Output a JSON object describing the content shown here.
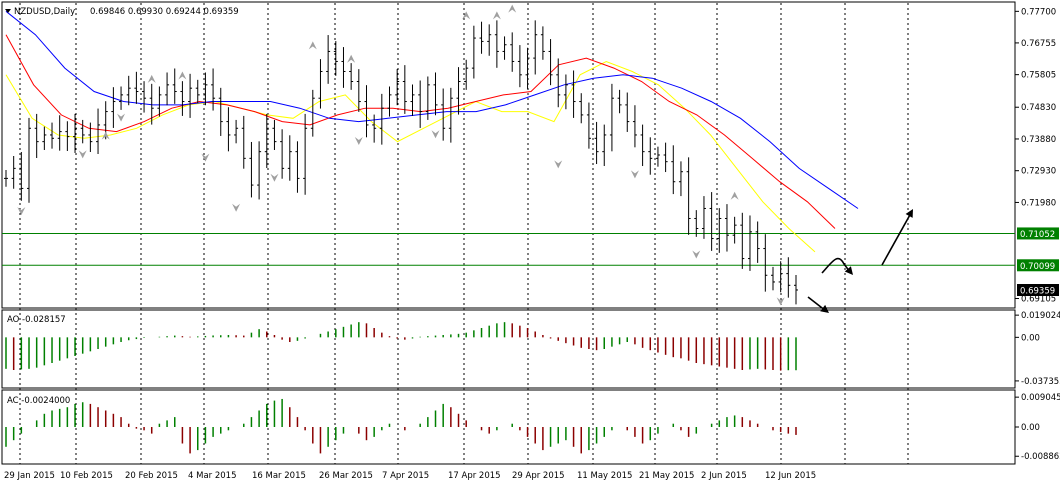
{
  "header": {
    "symbol": "NZDUSD,Daily",
    "ohlc": "0.69846 0.69930 0.69244 0.69359"
  },
  "colors": {
    "background": "#ffffff",
    "bar": "#000000",
    "ma_fast": "#ffff00",
    "ma_mid": "#ff0000",
    "ma_slow": "#0000ff",
    "hist_up": "#008000",
    "hist_down": "#8b0000",
    "support_line": "#008000",
    "price_tag_bg": "#008000",
    "current_tag_bg": "#000000",
    "grid": "#000000",
    "fractal": "#a0a0a0"
  },
  "chart_data": [
    {
      "type": "candlestick",
      "title": "NZDUSD,Daily",
      "price_axis": {
        "ticks": [
          "0.77700",
          "0.76755",
          "0.75805",
          "0.74830",
          "0.73880",
          "0.72930",
          "0.71980",
          "0.69105"
        ],
        "range": [
          0.69,
          0.778
        ]
      },
      "x_ticks": [
        "29 Jan 2015",
        "10 Feb 2015",
        "20 Feb 2015",
        "4 Mar 2015",
        "16 Mar 2015",
        "26 Mar 2015",
        "7 Apr 2015",
        "17 Apr 2015",
        "29 Apr 2015",
        "11 May 2015",
        "21 May 2015",
        "2 Jun 2015",
        "12 Jun 2015"
      ],
      "grid": "vertical dotted",
      "closes": [
        0.727,
        0.73,
        0.724,
        0.742,
        0.738,
        0.74,
        0.739,
        0.741,
        0.7395,
        0.742,
        0.74,
        0.738,
        0.743,
        0.747,
        0.75,
        0.752,
        0.754,
        0.753,
        0.751,
        0.748,
        0.752,
        0.755,
        0.753,
        0.75,
        0.754,
        0.752,
        0.755,
        0.751,
        0.744,
        0.74,
        0.742,
        0.733,
        0.725,
        0.735,
        0.742,
        0.738,
        0.73,
        0.735,
        0.727,
        0.742,
        0.751,
        0.759,
        0.765,
        0.762,
        0.759,
        0.756,
        0.75,
        0.743,
        0.742,
        0.748,
        0.752,
        0.756,
        0.75,
        0.752,
        0.747,
        0.755,
        0.749,
        0.742,
        0.751,
        0.756,
        0.76,
        0.769,
        0.768,
        0.77,
        0.765,
        0.767,
        0.762,
        0.758,
        0.763,
        0.77,
        0.765,
        0.758,
        0.752,
        0.755,
        0.75,
        0.746,
        0.739,
        0.735,
        0.74,
        0.751,
        0.749,
        0.744,
        0.74,
        0.735,
        0.733,
        0.734,
        0.732,
        0.726,
        0.729,
        0.715,
        0.712,
        0.718,
        0.709,
        0.715,
        0.71,
        0.713,
        0.703,
        0.711,
        0.706,
        0.698,
        0.696,
        0.6985,
        0.695,
        0.6936
      ],
      "moving_averages": [
        {
          "color": "yellow",
          "values": [
            0.758,
            0.745,
            0.74,
            0.739,
            0.74,
            0.742,
            0.746,
            0.749,
            0.75,
            0.748,
            0.746,
            0.745,
            0.75,
            0.752,
            0.744,
            0.738,
            0.742,
            0.746,
            0.75,
            0.747,
            0.747,
            0.744,
            0.758,
            0.762,
            0.759,
            0.755,
            0.748,
            0.74,
            0.73,
            0.72,
            0.712,
            0.705
          ]
        },
        {
          "color": "red",
          "values": [
            0.77,
            0.755,
            0.746,
            0.742,
            0.741,
            0.744,
            0.748,
            0.75,
            0.749,
            0.747,
            0.744,
            0.743,
            0.746,
            0.748,
            0.748,
            0.747,
            0.748,
            0.75,
            0.752,
            0.753,
            0.761,
            0.763,
            0.76,
            0.756,
            0.75,
            0.746,
            0.74,
            0.733,
            0.726,
            0.72,
            0.712
          ]
        },
        {
          "color": "blue",
          "values": [
            0.777,
            0.77,
            0.76,
            0.753,
            0.75,
            0.749,
            0.749,
            0.75,
            0.75,
            0.75,
            0.748,
            0.745,
            0.744,
            0.745,
            0.746,
            0.747,
            0.747,
            0.749,
            0.752,
            0.755,
            0.757,
            0.758,
            0.757,
            0.754,
            0.75,
            0.745,
            0.738,
            0.73,
            0.724,
            0.718
          ]
        }
      ],
      "price_lines": [
        {
          "label": "0.71052",
          "value": 0.71052
        },
        {
          "label": "0.70099",
          "value": 0.70099
        },
        {
          "label": "0.69359",
          "value": 0.69359,
          "current": true
        }
      ]
    },
    {
      "type": "bar",
      "title": "AO -0.028157",
      "axis_ticks": [
        "0.019024",
        "0.00",
        "-0.037353"
      ],
      "range": [
        -0.04,
        0.02
      ],
      "values": [
        -0.027,
        -0.028,
        -0.0275,
        -0.027,
        -0.026,
        -0.024,
        -0.022,
        -0.02,
        -0.018,
        -0.016,
        -0.014,
        -0.012,
        -0.01,
        -0.008,
        -0.006,
        -0.004,
        -0.0025,
        -0.0015,
        -0.0005,
        0.0,
        0.0005,
        0.001,
        0.0015,
        0.001,
        0.0005,
        0.0008,
        0.0012,
        0.0016,
        0.0018,
        0.002,
        0.0018,
        0.0015,
        0.004,
        0.007,
        0.005,
        0.002,
        -0.002,
        -0.004,
        -0.003,
        -0.001,
        0.0,
        0.003,
        0.005,
        0.007,
        0.009,
        0.011,
        0.013,
        0.012,
        0.008,
        0.004,
        0.001,
        -0.001,
        -0.002,
        -0.001,
        0.0005,
        0.001,
        0.0015,
        0.002,
        0.0025,
        0.003,
        0.004,
        0.006,
        0.008,
        0.01,
        0.012,
        0.013,
        0.012,
        0.01,
        0.008,
        0.005,
        0.002,
        -0.001,
        -0.003,
        -0.005,
        -0.007,
        -0.009,
        -0.01,
        -0.011,
        -0.01,
        -0.008,
        -0.006,
        -0.004,
        -0.006,
        -0.009,
        -0.011,
        -0.013,
        -0.015,
        -0.017,
        -0.018,
        -0.02,
        -0.022,
        -0.023,
        -0.024,
        -0.025,
        -0.026,
        -0.027,
        -0.028,
        -0.0275,
        -0.027,
        -0.0275,
        -0.028,
        -0.0285,
        -0.0282,
        -0.0282
      ]
    },
    {
      "type": "bar",
      "title": "AC -0.0024000",
      "axis_ticks": [
        "0.009045",
        "0.00",
        "-0.008862"
      ],
      "range": [
        -0.01,
        0.01
      ],
      "values": [
        -0.006,
        -0.004,
        -0.002,
        0.0,
        0.002,
        0.004,
        0.005,
        0.0055,
        0.006,
        0.007,
        0.0075,
        0.007,
        0.006,
        0.005,
        0.004,
        0.003,
        0.001,
        -0.0005,
        -0.001,
        -0.002,
        0.001,
        0.002,
        0.003,
        -0.005,
        -0.008,
        -0.007,
        -0.005,
        -0.003,
        -0.002,
        -0.001,
        0.0,
        0.001,
        0.003,
        0.005,
        0.007,
        0.008,
        0.0085,
        0.006,
        0.003,
        -0.001,
        -0.005,
        -0.008,
        -0.006,
        -0.004,
        -0.002,
        0.0,
        -0.002,
        -0.004,
        -0.003,
        -0.001,
        0.001,
        0.0,
        -0.001,
        0.0,
        0.001,
        0.003,
        0.005,
        0.007,
        0.006,
        0.004,
        0.002,
        0.0,
        -0.001,
        -0.002,
        -0.001,
        0.0,
        0.001,
        -0.001,
        -0.003,
        -0.005,
        -0.007,
        -0.006,
        -0.005,
        -0.004,
        -0.006,
        -0.008,
        -0.007,
        -0.005,
        -0.003,
        -0.001,
        0.0,
        -0.001,
        -0.003,
        -0.005,
        -0.004,
        -0.002,
        0.0,
        0.001,
        -0.001,
        -0.003,
        -0.002,
        0.0,
        0.001,
        0.002,
        0.003,
        0.0035,
        0.003,
        0.002,
        0.001,
        0.0,
        -0.001,
        -0.0015,
        -0.002,
        -0.0024
      ]
    }
  ]
}
